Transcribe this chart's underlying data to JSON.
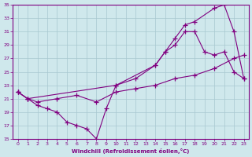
{
  "background_color": "#cfe8ec",
  "grid_color": "#a8c8d0",
  "line_color": "#800080",
  "marker": "+",
  "xlabel": "Windchill (Refroidissement éolien,°C)",
  "xlim": [
    -0.5,
    23.5
  ],
  "ylim": [
    15,
    35
  ],
  "yticks": [
    15,
    17,
    19,
    21,
    23,
    25,
    27,
    29,
    31,
    33,
    35
  ],
  "xticks": [
    0,
    1,
    2,
    3,
    4,
    5,
    6,
    7,
    8,
    9,
    10,
    11,
    12,
    13,
    14,
    15,
    16,
    17,
    18,
    19,
    20,
    21,
    22,
    23
  ],
  "series": [
    {
      "x": [
        0,
        1,
        2,
        4,
        6,
        8,
        10,
        12,
        14,
        16,
        18,
        20,
        22,
        23
      ],
      "y": [
        22,
        21,
        20.5,
        21,
        21.5,
        20.5,
        22,
        22.5,
        23,
        24,
        24.5,
        25.5,
        27,
        27.5
      ]
    },
    {
      "x": [
        0,
        1,
        2,
        3,
        4,
        5,
        6,
        7,
        8,
        9,
        10,
        14,
        15,
        16,
        17,
        18,
        20,
        21,
        22,
        23
      ],
      "y": [
        22,
        21,
        20,
        19.5,
        19,
        17.5,
        17,
        16.5,
        15,
        19.5,
        23,
        26,
        28,
        30,
        32,
        32.5,
        34.5,
        35,
        31,
        24
      ]
    },
    {
      "x": [
        0,
        1,
        10,
        12,
        14,
        15,
        16,
        17,
        18,
        19,
        20,
        21,
        22,
        23
      ],
      "y": [
        22,
        21,
        23,
        24,
        26,
        28,
        29,
        31,
        31,
        28,
        27.5,
        28,
        25,
        24
      ]
    }
  ]
}
